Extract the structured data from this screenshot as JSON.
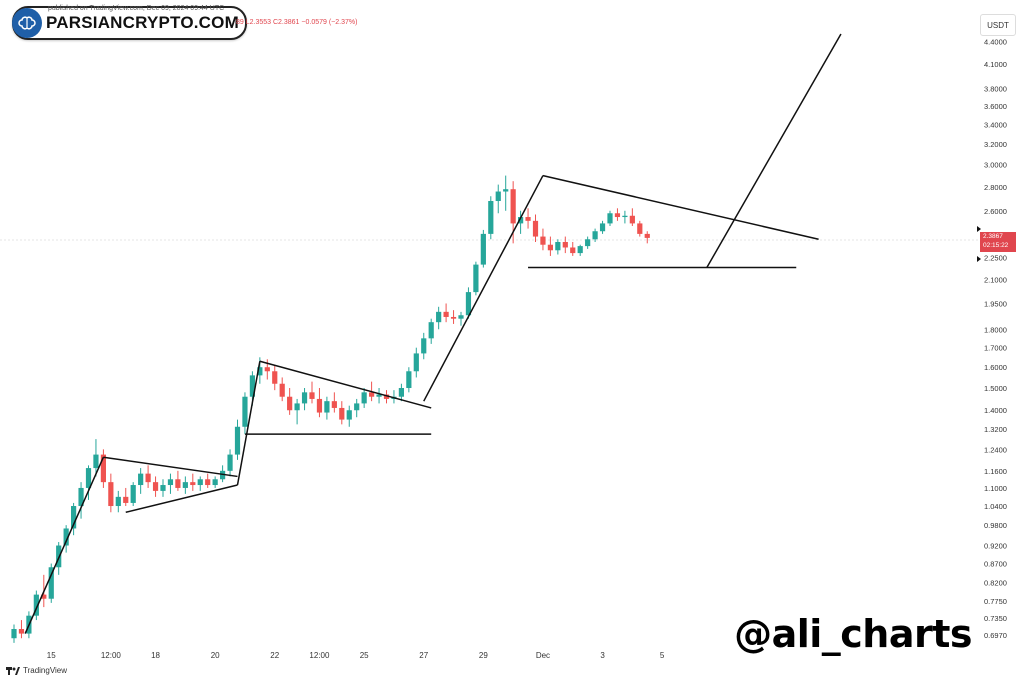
{
  "header": {
    "published": "published on TradingView.com, Dec 09, 2024 09:44 UTC",
    "ohlc": "89  L2.3553  C2.3861  −0.0579 (−2.37%)"
  },
  "logo": {
    "text": "PARSIANCRYPTO.COM",
    "icon": "brain-icon"
  },
  "watermark": "@ali_charts",
  "footer": {
    "brand": "TradingView",
    "icon": "tradingview-logo-icon"
  },
  "price_axis": {
    "unit": "USDT",
    "current_price": "2.3867",
    "countdown": "02:15:22"
  },
  "colors": {
    "up": "#26a69a",
    "down": "#ef5350",
    "trendline": "#111111",
    "axis_text": "#333333"
  },
  "chart_data": {
    "type": "candlestick",
    "title": "",
    "xlabel": "",
    "ylabel": "",
    "y_scale": "log",
    "ylim": [
      0.655,
      4.7
    ],
    "x_ticks": [
      {
        "i": 5,
        "label": "15"
      },
      {
        "i": 13,
        "label": "12:00"
      },
      {
        "i": 19,
        "label": "18"
      },
      {
        "i": 27,
        "label": "20"
      },
      {
        "i": 35,
        "label": "22"
      },
      {
        "i": 41,
        "label": "12:00"
      },
      {
        "i": 47,
        "label": "25"
      },
      {
        "i": 55,
        "label": "27"
      },
      {
        "i": 63,
        "label": "29"
      },
      {
        "i": 71,
        "label": "Dec"
      },
      {
        "i": 79,
        "label": "3"
      },
      {
        "i": 87,
        "label": "5"
      }
    ],
    "y_ticks": [
      "4.4000",
      "4.1000",
      "3.8000",
      "3.6000",
      "3.4000",
      "3.2000",
      "3.0000",
      "2.8000",
      "2.6000",
      "2.2500",
      "2.1000",
      "1.9500",
      "1.8000",
      "1.7000",
      "1.6000",
      "1.5000",
      "1.4000",
      "1.3200",
      "1.2400",
      "1.1600",
      "1.1000",
      "1.0400",
      "0.9800",
      "0.9200",
      "0.8700",
      "0.8200",
      "0.7750",
      "0.7350",
      "0.6970"
    ],
    "candles": [
      [
        0.69,
        0.72,
        0.68,
        0.71
      ],
      [
        0.71,
        0.73,
        0.69,
        0.7
      ],
      [
        0.7,
        0.75,
        0.69,
        0.74
      ],
      [
        0.74,
        0.8,
        0.73,
        0.79
      ],
      [
        0.79,
        0.84,
        0.76,
        0.78
      ],
      [
        0.78,
        0.87,
        0.77,
        0.86
      ],
      [
        0.86,
        0.93,
        0.84,
        0.92
      ],
      [
        0.92,
        0.98,
        0.9,
        0.97
      ],
      [
        0.97,
        1.05,
        0.95,
        1.04
      ],
      [
        1.04,
        1.12,
        1.0,
        1.1
      ],
      [
        1.1,
        1.18,
        1.06,
        1.17
      ],
      [
        1.17,
        1.28,
        1.14,
        1.22
      ],
      [
        1.22,
        1.24,
        1.1,
        1.12
      ],
      [
        1.12,
        1.15,
        1.02,
        1.04
      ],
      [
        1.04,
        1.09,
        1.02,
        1.07
      ],
      [
        1.07,
        1.1,
        1.04,
        1.05
      ],
      [
        1.05,
        1.12,
        1.04,
        1.11
      ],
      [
        1.11,
        1.17,
        1.08,
        1.15
      ],
      [
        1.15,
        1.18,
        1.1,
        1.12
      ],
      [
        1.12,
        1.14,
        1.07,
        1.09
      ],
      [
        1.09,
        1.13,
        1.07,
        1.11
      ],
      [
        1.11,
        1.15,
        1.08,
        1.13
      ],
      [
        1.13,
        1.16,
        1.09,
        1.1
      ],
      [
        1.1,
        1.14,
        1.08,
        1.12
      ],
      [
        1.12,
        1.15,
        1.09,
        1.11
      ],
      [
        1.11,
        1.14,
        1.09,
        1.13
      ],
      [
        1.13,
        1.15,
        1.1,
        1.11
      ],
      [
        1.11,
        1.14,
        1.1,
        1.13
      ],
      [
        1.13,
        1.18,
        1.12,
        1.16
      ],
      [
        1.16,
        1.24,
        1.14,
        1.22
      ],
      [
        1.22,
        1.36,
        1.2,
        1.33
      ],
      [
        1.33,
        1.48,
        1.3,
        1.46
      ],
      [
        1.46,
        1.58,
        1.42,
        1.56
      ],
      [
        1.56,
        1.65,
        1.52,
        1.6
      ],
      [
        1.6,
        1.64,
        1.54,
        1.58
      ],
      [
        1.58,
        1.61,
        1.49,
        1.52
      ],
      [
        1.52,
        1.55,
        1.44,
        1.46
      ],
      [
        1.46,
        1.5,
        1.38,
        1.4
      ],
      [
        1.4,
        1.45,
        1.34,
        1.43
      ],
      [
        1.43,
        1.5,
        1.4,
        1.48
      ],
      [
        1.48,
        1.53,
        1.43,
        1.45
      ],
      [
        1.45,
        1.5,
        1.37,
        1.39
      ],
      [
        1.39,
        1.46,
        1.36,
        1.44
      ],
      [
        1.44,
        1.48,
        1.39,
        1.41
      ],
      [
        1.41,
        1.44,
        1.34,
        1.36
      ],
      [
        1.36,
        1.42,
        1.33,
        1.4
      ],
      [
        1.4,
        1.45,
        1.37,
        1.43
      ],
      [
        1.43,
        1.5,
        1.41,
        1.48
      ],
      [
        1.48,
        1.53,
        1.44,
        1.46
      ],
      [
        1.46,
        1.5,
        1.43,
        1.47
      ],
      [
        1.47,
        1.49,
        1.43,
        1.45
      ],
      [
        1.45,
        1.49,
        1.43,
        1.46
      ],
      [
        1.46,
        1.52,
        1.44,
        1.5
      ],
      [
        1.5,
        1.6,
        1.48,
        1.58
      ],
      [
        1.58,
        1.7,
        1.55,
        1.67
      ],
      [
        1.67,
        1.78,
        1.64,
        1.75
      ],
      [
        1.75,
        1.86,
        1.72,
        1.84
      ],
      [
        1.84,
        1.93,
        1.8,
        1.9
      ],
      [
        1.9,
        1.95,
        1.84,
        1.87
      ],
      [
        1.87,
        1.91,
        1.83,
        1.86
      ],
      [
        1.86,
        1.9,
        1.82,
        1.88
      ],
      [
        1.88,
        2.05,
        1.86,
        2.02
      ],
      [
        2.02,
        2.22,
        2.0,
        2.2
      ],
      [
        2.2,
        2.45,
        2.18,
        2.42
      ],
      [
        2.42,
        2.72,
        2.38,
        2.68
      ],
      [
        2.68,
        2.82,
        2.58,
        2.76
      ],
      [
        2.76,
        2.9,
        2.6,
        2.78
      ],
      [
        2.78,
        2.85,
        2.35,
        2.5
      ],
      [
        2.5,
        2.6,
        2.42,
        2.55
      ],
      [
        2.55,
        2.62,
        2.46,
        2.52
      ],
      [
        2.52,
        2.57,
        2.36,
        2.4
      ],
      [
        2.4,
        2.46,
        2.3,
        2.34
      ],
      [
        2.34,
        2.4,
        2.26,
        2.3
      ],
      [
        2.3,
        2.38,
        2.27,
        2.36
      ],
      [
        2.36,
        2.4,
        2.28,
        2.32
      ],
      [
        2.32,
        2.36,
        2.26,
        2.28
      ],
      [
        2.28,
        2.34,
        2.26,
        2.33
      ],
      [
        2.33,
        2.4,
        2.31,
        2.38
      ],
      [
        2.38,
        2.46,
        2.36,
        2.44
      ],
      [
        2.44,
        2.52,
        2.42,
        2.5
      ],
      [
        2.5,
        2.6,
        2.48,
        2.58
      ],
      [
        2.58,
        2.62,
        2.52,
        2.55
      ],
      [
        2.55,
        2.6,
        2.5,
        2.56
      ],
      [
        2.56,
        2.62,
        2.48,
        2.5
      ],
      [
        2.5,
        2.52,
        2.4,
        2.42
      ],
      [
        2.42,
        2.44,
        2.35,
        2.39
      ]
    ],
    "trendlines": [
      {
        "from": [
          1.5,
          0.7
        ],
        "to": [
          12,
          1.21
        ]
      },
      {
        "from": [
          12,
          1.21
        ],
        "to": [
          30,
          1.14
        ]
      },
      {
        "from": [
          15,
          1.02
        ],
        "to": [
          30,
          1.11
        ]
      },
      {
        "from": [
          30,
          1.11
        ],
        "to": [
          33,
          1.63
        ]
      },
      {
        "from": [
          33,
          1.63
        ],
        "to": [
          56,
          1.41
        ]
      },
      {
        "from": [
          31,
          1.3
        ],
        "to": [
          56,
          1.3
        ]
      },
      {
        "from": [
          55,
          1.44
        ],
        "to": [
          71,
          2.9
        ]
      },
      {
        "from": [
          69,
          2.18
        ],
        "to": [
          105,
          2.18
        ]
      },
      {
        "from": [
          71,
          2.9
        ],
        "to": [
          108,
          2.38
        ]
      },
      {
        "from": [
          93,
          2.18
        ],
        "to": [
          111,
          4.5
        ]
      }
    ]
  }
}
